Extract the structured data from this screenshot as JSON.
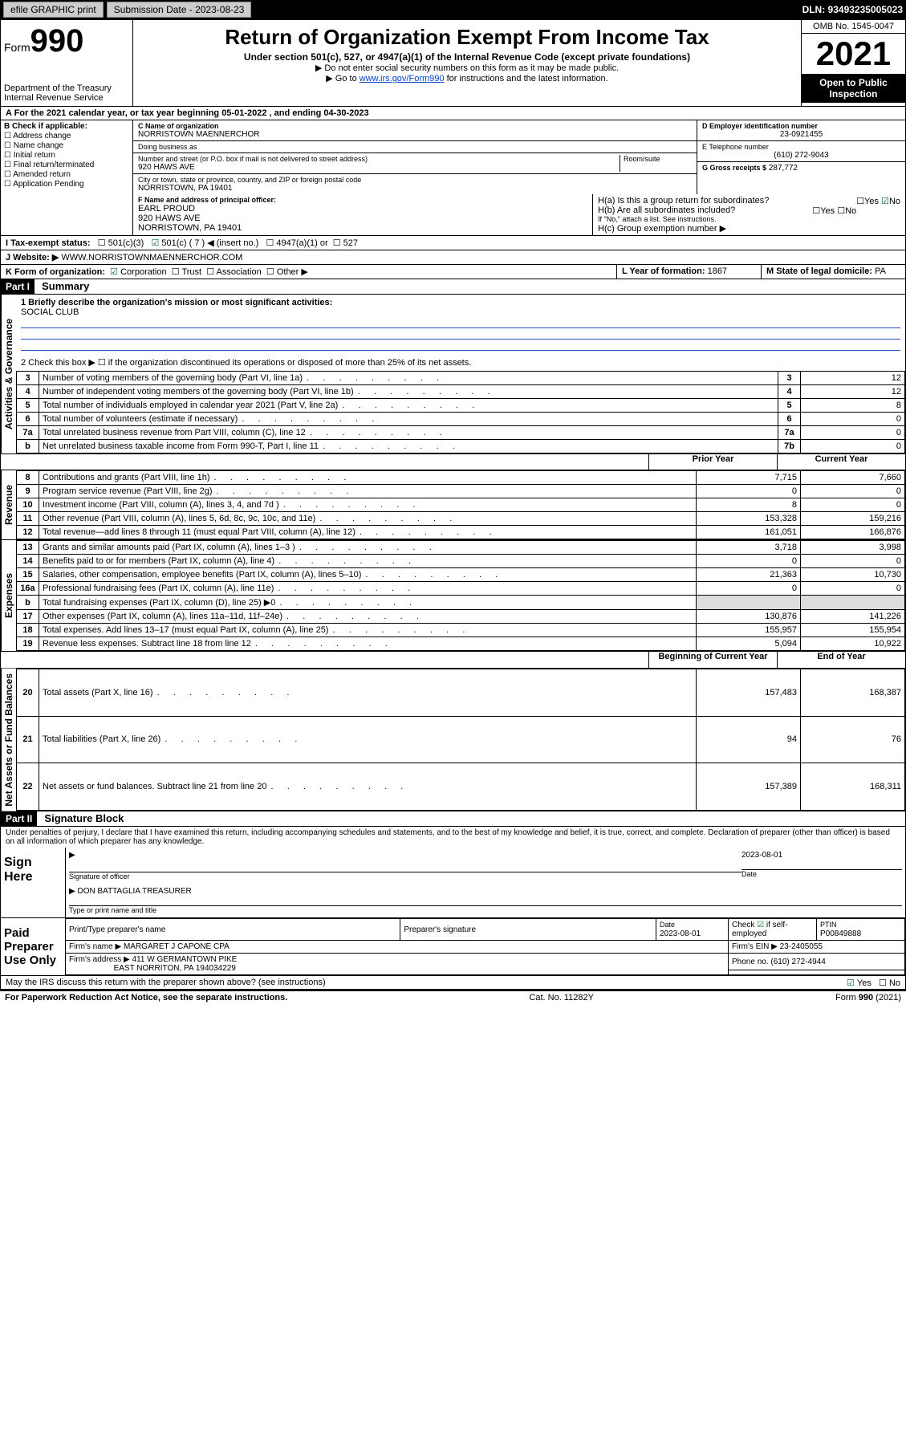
{
  "top_bar": {
    "efile": "efile GRAPHIC print",
    "submission_label": "Submission Date - 2023-08-23",
    "dln": "DLN: 93493235005023"
  },
  "header": {
    "form": "Form",
    "form_num": "990",
    "title": "Return of Organization Exempt From Income Tax",
    "subtitle": "Under section 501(c), 527, or 4947(a)(1) of the Internal Revenue Code (except private foundations)",
    "note1": "▶ Do not enter social security numbers on this form as it may be made public.",
    "note2_pre": "▶ Go to ",
    "note2_link": "www.irs.gov/Form990",
    "note2_post": " for instructions and the latest information.",
    "dept": "Department of the Treasury Internal Revenue Service",
    "omb": "OMB No. 1545-0047",
    "year": "2021",
    "open": "Open to Public Inspection"
  },
  "row_a": "A For the 2021 calendar year, or tax year beginning 05-01-2022   , and ending 04-30-2023",
  "check_b": {
    "label": "B Check if applicable:",
    "opts": [
      "Address change",
      "Name change",
      "Initial return",
      "Final return/terminated",
      "Amended return",
      "Application Pending"
    ]
  },
  "org": {
    "name_label": "C Name of organization",
    "name": "NORRISTOWN MAENNERCHOR",
    "dba_label": "Doing business as",
    "dba": "",
    "addr_label": "Number and street (or P.O. box if mail is not delivered to street address)",
    "room_label": "Room/suite",
    "addr": "920 HAWS AVE",
    "city_label": "City or town, state or province, country, and ZIP or foreign postal code",
    "city": "NORRISTOWN, PA  19401"
  },
  "right_col": {
    "ein_label": "D Employer identification number",
    "ein": "23-0921455",
    "phone_label": "E Telephone number",
    "phone": "(610) 272-9043",
    "gross_label": "G Gross receipts $",
    "gross": "287,772"
  },
  "officer": {
    "label": "F Name and address of principal officer:",
    "name": "EARL PROUD",
    "addr1": "920 HAWS AVE",
    "addr2": "NORRISTOWN, PA  19401"
  },
  "h_block": {
    "ha": "H(a)  Is this a group return for subordinates?",
    "ha_yes": "Yes",
    "ha_no": "No",
    "hb": "H(b)  Are all subordinates included?",
    "hb_note": "If \"No,\" attach a list. See instructions.",
    "hc": "H(c)  Group exemption number ▶"
  },
  "status_row": {
    "label": "I    Tax-exempt status:",
    "c3": "501(c)(3)",
    "c": "501(c) ( 7 ) ◀ (insert no.)",
    "a1": "4947(a)(1) or",
    "s527": "527"
  },
  "website": {
    "label": "J    Website: ▶",
    "value": "WWW.NORRISTOWNMAENNERCHOR.COM"
  },
  "k_row": {
    "label": "K Form of organization:",
    "corp": "Corporation",
    "trust": "Trust",
    "assoc": "Association",
    "other": "Other ▶",
    "l_label": "L Year of formation:",
    "l_val": "1867",
    "m_label": "M State of legal domicile:",
    "m_val": "PA"
  },
  "part1": {
    "hdr": "Part I",
    "title": "Summary",
    "q1": "1  Briefly describe the organization's mission or most significant activities:",
    "q1_ans": "SOCIAL CLUB",
    "q2": "2   Check this box ▶ ☐  if the organization discontinued its operations or disposed of more than 25% of its net assets.",
    "lines": [
      {
        "n": "3",
        "text": "Number of voting members of the governing body (Part VI, line 1a)",
        "lab": "3",
        "val": "12"
      },
      {
        "n": "4",
        "text": "Number of independent voting members of the governing body (Part VI, line 1b)",
        "lab": "4",
        "val": "12"
      },
      {
        "n": "5",
        "text": "Total number of individuals employed in calendar year 2021 (Part V, line 2a)",
        "lab": "5",
        "val": "8"
      },
      {
        "n": "6",
        "text": "Total number of volunteers (estimate if necessary)",
        "lab": "6",
        "val": "0"
      },
      {
        "n": "7a",
        "text": "Total unrelated business revenue from Part VIII, column (C), line 12",
        "lab": "7a",
        "val": "0"
      },
      {
        "n": "b",
        "text": "Net unrelated business taxable income from Form 990-T, Part I, line 11",
        "lab": "7b",
        "val": "0"
      }
    ],
    "col_hdr_prior": "Prior Year",
    "col_hdr_curr": "Current Year",
    "revenue": [
      {
        "n": "8",
        "text": "Contributions and grants (Part VIII, line 1h)",
        "p": "7,715",
        "c": "7,660"
      },
      {
        "n": "9",
        "text": "Program service revenue (Part VIII, line 2g)",
        "p": "0",
        "c": "0"
      },
      {
        "n": "10",
        "text": "Investment income (Part VIII, column (A), lines 3, 4, and 7d )",
        "p": "8",
        "c": "0"
      },
      {
        "n": "11",
        "text": "Other revenue (Part VIII, column (A), lines 5, 6d, 8c, 9c, 10c, and 11e)",
        "p": "153,328",
        "c": "159,216"
      },
      {
        "n": "12",
        "text": "Total revenue—add lines 8 through 11 (must equal Part VIII, column (A), line 12)",
        "p": "161,051",
        "c": "166,876"
      }
    ],
    "expenses": [
      {
        "n": "13",
        "text": "Grants and similar amounts paid (Part IX, column (A), lines 1–3 )",
        "p": "3,718",
        "c": "3,998"
      },
      {
        "n": "14",
        "text": "Benefits paid to or for members (Part IX, column (A), line 4)",
        "p": "0",
        "c": "0"
      },
      {
        "n": "15",
        "text": "Salaries, other compensation, employee benefits (Part IX, column (A), lines 5–10)",
        "p": "21,363",
        "c": "10,730"
      },
      {
        "n": "16a",
        "text": "Professional fundraising fees (Part IX, column (A), line 11e)",
        "p": "0",
        "c": "0"
      },
      {
        "n": "b",
        "text": "Total fundraising expenses (Part IX, column (D), line 25) ▶0",
        "p": "",
        "c": "",
        "gray": true
      },
      {
        "n": "17",
        "text": "Other expenses (Part IX, column (A), lines 11a–11d, 11f–24e)",
        "p": "130,876",
        "c": "141,226"
      },
      {
        "n": "18",
        "text": "Total expenses. Add lines 13–17 (must equal Part IX, column (A), line 25)",
        "p": "155,957",
        "c": "155,954"
      },
      {
        "n": "19",
        "text": "Revenue less expenses. Subtract line 18 from line 12",
        "p": "5,094",
        "c": "10,922"
      }
    ],
    "col_hdr_begin": "Beginning of Current Year",
    "col_hdr_end": "End of Year",
    "netassets": [
      {
        "n": "20",
        "text": "Total assets (Part X, line 16)",
        "p": "157,483",
        "c": "168,387"
      },
      {
        "n": "21",
        "text": "Total liabilities (Part X, line 26)",
        "p": "94",
        "c": "76"
      },
      {
        "n": "22",
        "text": "Net assets or fund balances. Subtract line 21 from line 20",
        "p": "157,389",
        "c": "168,311"
      }
    ]
  },
  "vlabels": {
    "gov": "Activities & Governance",
    "rev": "Revenue",
    "exp": "Expenses",
    "net": "Net Assets or Fund Balances"
  },
  "part2": {
    "hdr": "Part II",
    "title": "Signature Block",
    "decl": "Under penalties of perjury, I declare that I have examined this return, including accompanying schedules and statements, and to the best of my knowledge and belief, it is true, correct, and complete. Declaration of preparer (other than officer) is based on all information of which preparer has any knowledge.",
    "sign_here": "Sign Here",
    "sig_officer": "Signature of officer",
    "sig_date": "2023-08-01",
    "date_label": "Date",
    "officer_name": "DON BATTAGLIA TREASURER",
    "type_name": "Type or print name and title",
    "paid_label": "Paid Preparer Use Only",
    "prep_name_label": "Print/Type preparer's name",
    "prep_sig_label": "Preparer's signature",
    "prep_date_label": "Date",
    "prep_date": "2023-08-01",
    "check_if": "Check ☑ if self-employed",
    "ptin_label": "PTIN",
    "ptin": "P00849888",
    "firm_name_label": "Firm's name   ▶",
    "firm_name": "MARGARET J CAPONE CPA",
    "firm_ein_label": "Firm's EIN ▶",
    "firm_ein": "23-2405055",
    "firm_addr_label": "Firm's address ▶",
    "firm_addr1": "411 W GERMANTOWN PIKE",
    "firm_addr2": "EAST NORRITON, PA  194034229",
    "firm_phone_label": "Phone no.",
    "firm_phone": "(610) 272-4944",
    "may_irs": "May the IRS discuss this return with the preparer shown above? (see instructions)",
    "yes": "Yes",
    "no": "No"
  },
  "footer": {
    "left": "For Paperwork Reduction Act Notice, see the separate instructions.",
    "mid": "Cat. No. 11282Y",
    "right": "Form 990 (2021)"
  }
}
